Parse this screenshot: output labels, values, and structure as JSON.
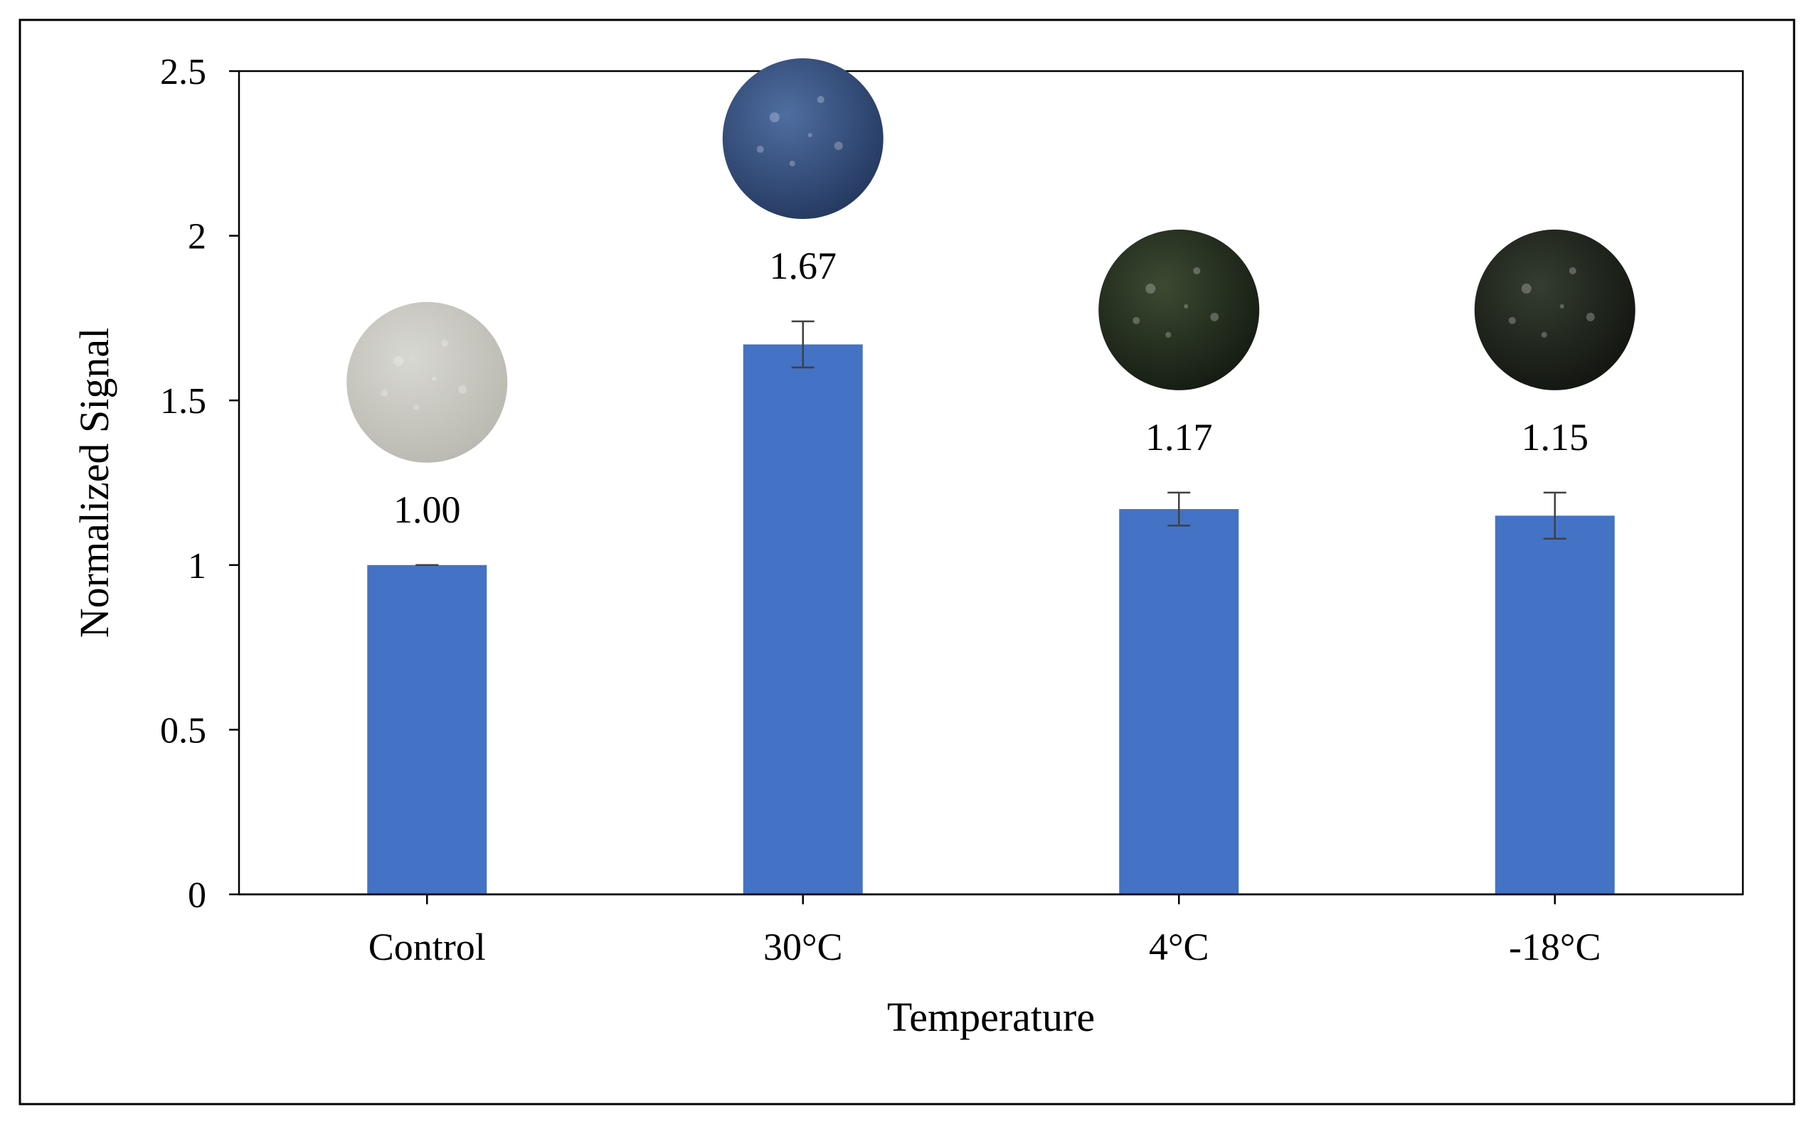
{
  "chart_data": {
    "type": "bar",
    "title": "",
    "xlabel": "Temperature",
    "ylabel": "Normalized Signal",
    "categories": [
      "Control",
      "30°C",
      "4°C",
      "-18°C"
    ],
    "values": [
      1.0,
      1.67,
      1.17,
      1.15
    ],
    "errors": [
      0.0,
      0.07,
      0.05,
      0.07
    ],
    "data_labels": [
      "1.00",
      "1.67",
      "1.17",
      "1.15"
    ],
    "ylim": [
      0,
      2.5
    ],
    "yticks": [
      0,
      0.5,
      1,
      1.5,
      2,
      2.5
    ],
    "ytick_labels": [
      "0",
      "0.5",
      "1",
      "1.5",
      "2",
      "2.5"
    ],
    "grid": false,
    "legend": "none",
    "bar_color": "#4472C4",
    "sample_images": [
      {
        "category": "Control",
        "tone": "light grey",
        "colors": [
          "#d8d8d2",
          "#b9b9b1"
        ]
      },
      {
        "category": "30°C",
        "tone": "blue",
        "colors": [
          "#4f6ea1",
          "#24385f"
        ]
      },
      {
        "category": "4°C",
        "tone": "dark green",
        "colors": [
          "#3c4a32",
          "#141b12"
        ]
      },
      {
        "category": "-18°C",
        "tone": "dark green",
        "colors": [
          "#343d2f",
          "#121510"
        ]
      }
    ]
  }
}
